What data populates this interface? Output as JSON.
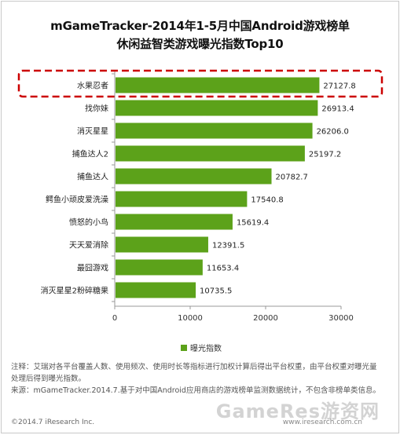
{
  "header": {
    "title_line1": "mGameTracker-2014年1-5月中国Android游戏榜单",
    "title_line2": "休闲益智类游戏曝光指数Top10"
  },
  "colors": {
    "bar": "#5ca21a",
    "highlight": "#cc0000",
    "axis": "#999999"
  },
  "chart_data": {
    "type": "bar",
    "orientation": "horizontal",
    "categories": [
      "水果忍者",
      "找你妹",
      "消灭星星",
      "捕鱼达人2",
      "捕鱼达人",
      "鳄鱼小顽皮爱洗澡",
      "愤怒的小鸟",
      "天天爱消除",
      "最囧游戏",
      "消灭星星2粉碎糖果"
    ],
    "series": [
      {
        "name": "曝光指数",
        "values": [
          27127.8,
          26913.4,
          26206.0,
          25197.2,
          20782.7,
          17540.8,
          15619.4,
          12391.5,
          11653.4,
          10735.5
        ]
      }
    ],
    "value_labels": [
      "27127.8",
      "26913.4",
      "26206.0",
      "25197.2",
      "20782.7",
      "17540.8",
      "15619.4",
      "12391.5",
      "11653.4",
      "10735.5"
    ],
    "xlim": [
      0,
      30000
    ],
    "xticks": [
      0,
      10000,
      20000,
      30000
    ],
    "xtick_labels": [
      "0",
      "10000",
      "20000",
      "30000"
    ],
    "highlighted_category": "水果忍者",
    "legend": "bottom",
    "grid": false
  },
  "legend": {
    "label": "曝光指数"
  },
  "notes": {
    "line1": "注释：艾瑞对各平台覆盖人数、使用频次、使用时长等指标进行加权计算后得出平台权重，由平台权重对曝光量处理后得到曝光指数。",
    "line2": "来源：mGameTracker.2014.7.基于对中国Android应用商店的游戏榜单监测数据统计，不包含非榜单类信息。"
  },
  "footer": {
    "copyright": "©2014.7 iResearch Inc.",
    "site": "www.iresearch.com.cn",
    "watermark": "GameRes游资网"
  }
}
